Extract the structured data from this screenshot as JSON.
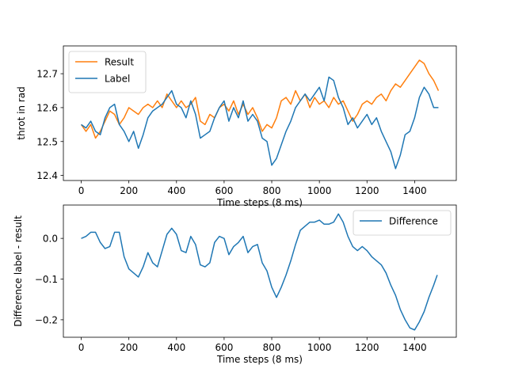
{
  "chart_data": [
    {
      "type": "line",
      "xlabel": "Time steps (8 ms)",
      "ylabel": "throt in rad",
      "xlim": [
        -75,
        1575
      ],
      "ylim": [
        12.385,
        12.782
      ],
      "xticks": [
        0,
        200,
        400,
        600,
        800,
        1000,
        1200,
        1400
      ],
      "yticks": [
        12.4,
        12.5,
        12.6,
        12.7
      ],
      "grid": false,
      "legend": "top-left",
      "series": [
        {
          "name": "Result",
          "color": "#ff7f0e",
          "x": [
            0,
            20,
            40,
            60,
            80,
            100,
            120,
            140,
            160,
            180,
            200,
            220,
            240,
            260,
            280,
            300,
            320,
            340,
            360,
            380,
            400,
            420,
            440,
            460,
            480,
            500,
            520,
            540,
            560,
            580,
            600,
            620,
            640,
            660,
            680,
            700,
            720,
            740,
            760,
            780,
            800,
            820,
            840,
            860,
            880,
            900,
            920,
            940,
            960,
            980,
            1000,
            1020,
            1040,
            1060,
            1080,
            1100,
            1120,
            1140,
            1160,
            1180,
            1200,
            1220,
            1240,
            1260,
            1280,
            1300,
            1320,
            1340,
            1360,
            1380,
            1400,
            1420,
            1440,
            1460,
            1480,
            1500
          ],
          "values": [
            12.55,
            12.53,
            12.55,
            12.51,
            12.53,
            12.56,
            12.59,
            12.58,
            12.55,
            12.57,
            12.6,
            12.59,
            12.58,
            12.6,
            12.61,
            12.6,
            12.62,
            12.6,
            12.64,
            12.62,
            12.6,
            12.62,
            12.6,
            12.61,
            12.63,
            12.56,
            12.55,
            12.58,
            12.57,
            12.6,
            12.61,
            12.59,
            12.62,
            12.58,
            12.61,
            12.58,
            12.6,
            12.57,
            12.53,
            12.55,
            12.54,
            12.57,
            12.62,
            12.63,
            12.61,
            12.65,
            12.62,
            12.64,
            12.6,
            12.63,
            12.61,
            12.62,
            12.6,
            12.63,
            12.61,
            12.62,
            12.59,
            12.56,
            12.58,
            12.61,
            12.62,
            12.61,
            12.63,
            12.64,
            12.62,
            12.65,
            12.67,
            12.66,
            12.68,
            12.7,
            12.72,
            12.74,
            12.73,
            12.7,
            12.68,
            12.65
          ]
        },
        {
          "name": "Label",
          "color": "#1f77b4",
          "x": [
            0,
            20,
            40,
            60,
            80,
            100,
            120,
            140,
            160,
            180,
            200,
            220,
            240,
            260,
            280,
            300,
            320,
            340,
            360,
            380,
            400,
            420,
            440,
            460,
            480,
            500,
            520,
            540,
            560,
            580,
            600,
            620,
            640,
            660,
            680,
            700,
            720,
            740,
            760,
            780,
            800,
            820,
            840,
            860,
            880,
            900,
            920,
            940,
            960,
            980,
            1000,
            1020,
            1040,
            1060,
            1080,
            1100,
            1120,
            1140,
            1160,
            1180,
            1200,
            1220,
            1240,
            1260,
            1280,
            1300,
            1320,
            1340,
            1360,
            1380,
            1400,
            1420,
            1440,
            1460,
            1480,
            1500
          ],
          "values": [
            12.55,
            12.54,
            12.56,
            12.53,
            12.52,
            12.57,
            12.6,
            12.61,
            12.55,
            12.53,
            12.5,
            12.53,
            12.48,
            12.52,
            12.57,
            12.59,
            12.6,
            12.61,
            12.63,
            12.65,
            12.61,
            12.6,
            12.57,
            12.62,
            12.58,
            12.51,
            12.52,
            12.53,
            12.57,
            12.6,
            12.62,
            12.56,
            12.6,
            12.57,
            12.62,
            12.56,
            12.58,
            12.56,
            12.51,
            12.5,
            12.43,
            12.45,
            12.49,
            12.53,
            12.56,
            12.6,
            12.62,
            12.64,
            12.62,
            12.64,
            12.66,
            12.62,
            12.69,
            12.68,
            12.63,
            12.6,
            12.55,
            12.57,
            12.54,
            12.56,
            12.58,
            12.55,
            12.57,
            12.53,
            12.5,
            12.47,
            12.42,
            12.46,
            12.52,
            12.53,
            12.57,
            12.63,
            12.66,
            12.64,
            12.6,
            12.6
          ]
        }
      ]
    },
    {
      "type": "line",
      "xlabel": "Time steps (8 ms)",
      "ylabel": "Difference label - result",
      "xlim": [
        -75,
        1575
      ],
      "ylim": [
        -0.243,
        0.082
      ],
      "xticks": [
        0,
        200,
        400,
        600,
        800,
        1000,
        1200,
        1400
      ],
      "yticks": [
        0.0,
        -0.1,
        -0.2
      ],
      "ytick_labels": [
        "0.0",
        "−0.1",
        "−0.2"
      ],
      "grid": false,
      "legend": "top-right",
      "series": [
        {
          "name": "Difference",
          "color": "#1f77b4",
          "x": [
            0,
            20,
            40,
            60,
            80,
            100,
            120,
            140,
            160,
            180,
            200,
            220,
            240,
            260,
            280,
            300,
            320,
            340,
            360,
            380,
            400,
            420,
            440,
            460,
            480,
            500,
            520,
            540,
            560,
            580,
            600,
            620,
            640,
            660,
            680,
            700,
            720,
            740,
            760,
            780,
            800,
            820,
            840,
            860,
            880,
            900,
            920,
            940,
            960,
            980,
            1000,
            1020,
            1040,
            1060,
            1080,
            1100,
            1120,
            1140,
            1160,
            1180,
            1200,
            1220,
            1240,
            1260,
            1280,
            1300,
            1320,
            1340,
            1360,
            1380,
            1400,
            1420,
            1440,
            1460,
            1480,
            1495
          ],
          "values": [
            0.0,
            0.005,
            0.015,
            0.015,
            -0.01,
            -0.025,
            -0.02,
            0.015,
            0.015,
            -0.045,
            -0.075,
            -0.085,
            -0.095,
            -0.07,
            -0.035,
            -0.06,
            -0.07,
            -0.03,
            0.01,
            0.025,
            0.01,
            -0.03,
            -0.035,
            0.005,
            -0.015,
            -0.065,
            -0.07,
            -0.06,
            -0.01,
            0.005,
            0.0,
            -0.04,
            -0.02,
            -0.01,
            0.005,
            -0.035,
            -0.02,
            -0.015,
            -0.06,
            -0.08,
            -0.12,
            -0.145,
            -0.12,
            -0.09,
            -0.055,
            -0.015,
            0.02,
            0.03,
            0.04,
            0.04,
            0.045,
            0.035,
            0.035,
            0.04,
            0.06,
            0.04,
            0.005,
            -0.02,
            -0.03,
            -0.02,
            -0.03,
            -0.045,
            -0.055,
            -0.065,
            -0.085,
            -0.115,
            -0.14,
            -0.175,
            -0.2,
            -0.22,
            -0.225,
            -0.205,
            -0.18,
            -0.145,
            -0.115,
            -0.09
          ]
        }
      ]
    }
  ]
}
